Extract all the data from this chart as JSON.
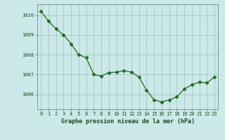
{
  "x": [
    0,
    1,
    2,
    3,
    4,
    5,
    6,
    7,
    8,
    9,
    10,
    11,
    12,
    13,
    14,
    15,
    16,
    17,
    18,
    19,
    20,
    21,
    22,
    23
  ],
  "y": [
    1010.2,
    1009.7,
    1009.3,
    1009.0,
    1008.55,
    1008.0,
    1007.85,
    1007.0,
    1006.92,
    1007.1,
    1007.12,
    1007.2,
    1007.12,
    1006.87,
    1006.2,
    1005.72,
    1005.62,
    1005.72,
    1005.87,
    1006.27,
    1006.48,
    1006.62,
    1006.58,
    1006.88
  ],
  "line_color": "#1e6b1e",
  "marker_color": "#1e6b1e",
  "bg_color": "#cce8e8",
  "grid_color": "#aacccc",
  "xlabel": "Graphe pression niveau de la mer (hPa)",
  "ylabel_ticks": [
    1006,
    1007,
    1008,
    1009,
    1010
  ],
  "ylim": [
    1005.25,
    1010.55
  ],
  "xlim": [
    -0.5,
    23.5
  ],
  "xlabel_color": "#1a4a1a",
  "tick_label_color": "#1a4a1a"
}
